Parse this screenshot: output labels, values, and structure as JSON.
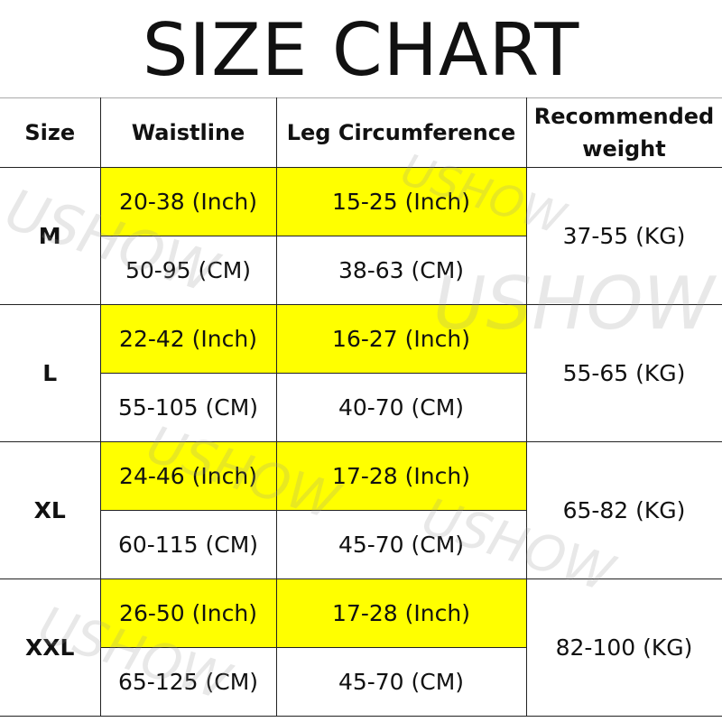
{
  "title": "SIZE CHART",
  "headers": [
    "Size",
    "Waistline",
    "Leg Circumference",
    "Recommended weight"
  ],
  "rows": [
    {
      "size": "M",
      "waist_inch": "20-38 (Inch)",
      "leg_inch": "15-25 (Inch)",
      "waist_cm": "50-95 (CM)",
      "leg_cm": "38-63 (CM)",
      "weight": "37-55 (KG)"
    },
    {
      "size": "L",
      "waist_inch": "22-42 (Inch)",
      "leg_inch": "16-27 (Inch)",
      "waist_cm": "55-105 (CM)",
      "leg_cm": "40-70 (CM)",
      "weight": "55-65 (KG)"
    },
    {
      "size": "XL",
      "waist_inch": "24-46 (Inch)",
      "leg_inch": "17-28 (Inch)",
      "waist_cm": "60-115 (CM)",
      "leg_cm": "45-70 (CM)",
      "weight": "65-82 (KG)"
    },
    {
      "size": "XXL",
      "waist_inch": "26-50 (Inch)",
      "leg_inch": "17-28 (Inch)",
      "waist_cm": "65-125 (CM)",
      "leg_cm": "45-70 (CM)",
      "weight": "82-100 (KG)"
    }
  ],
  "highlight_color": "#ffff00",
  "watermark": "USHOW"
}
